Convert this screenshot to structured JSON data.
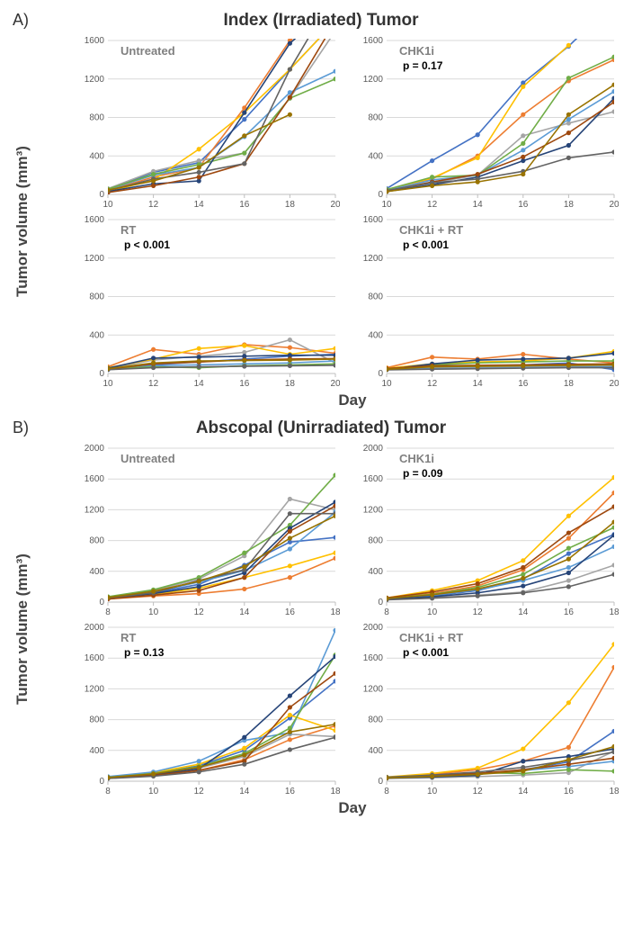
{
  "palette": [
    "#4472c4",
    "#ed7d31",
    "#a5a5a5",
    "#ffc000",
    "#5b9bd5",
    "#70ad47",
    "#264478",
    "#9e480e",
    "#636363",
    "#997300"
  ],
  "grid_color": "#d9d9d9",
  "axis_color": "#bfbfbf",
  "panelA": {
    "label": "A)",
    "title": "Index (Irradiated) Tumor",
    "xlabel": "Day",
    "ylabel": "Tumor volume (mm³)",
    "x_domain": [
      10,
      20
    ],
    "x_ticks": [
      10,
      12,
      14,
      16,
      18,
      20
    ],
    "y_domain": [
      0,
      1600
    ],
    "y_ticks": [
      0,
      400,
      800,
      1200,
      1600
    ],
    "charts": [
      {
        "condition": "Untreated",
        "p": null,
        "series": [
          [
            50,
            230,
            330,
            780,
            1300,
            1800
          ],
          [
            40,
            180,
            280,
            900,
            1600,
            2000
          ],
          [
            60,
            240,
            350,
            430,
            1000,
            1700
          ],
          [
            30,
            150,
            470,
            850,
            1300,
            1800
          ],
          [
            50,
            200,
            280,
            600,
            1060,
            1280
          ],
          [
            55,
            210,
            310,
            430,
            1000,
            1200
          ],
          [
            30,
            110,
            140,
            850,
            1570,
            2000
          ],
          [
            20,
            90,
            180,
            320,
            1010,
            1800
          ],
          [
            40,
            160,
            230,
            320,
            1300,
            2100
          ],
          [
            45,
            140,
            280,
            610,
            830
          ]
        ]
      },
      {
        "condition": "CHK1i",
        "p": "p = 0.17",
        "series": [
          [
            60,
            350,
            620,
            1160,
            1540,
            2000
          ],
          [
            40,
            160,
            400,
            830,
            1180,
            1400
          ],
          [
            30,
            120,
            200,
            610,
            740,
            860
          ],
          [
            50,
            170,
            380,
            1120,
            1550
          ],
          [
            40,
            150,
            200,
            460,
            780,
            1070
          ],
          [
            50,
            180,
            200,
            530,
            1210,
            1430
          ],
          [
            30,
            100,
            180,
            350,
            510,
            1000
          ],
          [
            35,
            130,
            210,
            390,
            640,
            960
          ],
          [
            40,
            120,
            160,
            240,
            380,
            440
          ],
          [
            30,
            90,
            130,
            210,
            830,
            1140
          ]
        ]
      },
      {
        "condition": "RT",
        "p": "p < 0.001",
        "series": [
          [
            60,
            90,
            120,
            150,
            180,
            200
          ],
          [
            70,
            250,
            200,
            300,
            270,
            210
          ],
          [
            50,
            140,
            180,
            220,
            350,
            110
          ],
          [
            60,
            150,
            260,
            290,
            200,
            260
          ],
          [
            40,
            80,
            90,
            100,
            110,
            130
          ],
          [
            50,
            70,
            60,
            80,
            90,
            100
          ],
          [
            55,
            160,
            170,
            180,
            190,
            190
          ],
          [
            45,
            100,
            120,
            140,
            150,
            155
          ],
          [
            40,
            60,
            70,
            75,
            80,
            85
          ],
          [
            50,
            110,
            130,
            135,
            140,
            150
          ]
        ]
      },
      {
        "condition": "CHK1i + RT",
        "p": "p < 0.001",
        "series": [
          [
            50,
            70,
            80,
            90,
            110,
            40
          ],
          [
            60,
            170,
            150,
            200,
            150,
            110
          ],
          [
            45,
            60,
            65,
            70,
            75,
            80
          ],
          [
            55,
            100,
            120,
            130,
            160,
            230
          ],
          [
            40,
            50,
            55,
            60,
            65,
            70
          ],
          [
            48,
            90,
            110,
            120,
            130,
            130
          ],
          [
            42,
            100,
            140,
            150,
            160,
            210
          ],
          [
            52,
            80,
            85,
            90,
            95,
            100
          ],
          [
            38,
            45,
            50,
            55,
            60,
            60
          ],
          [
            44,
            70,
            75,
            80,
            85,
            90
          ]
        ]
      }
    ]
  },
  "panelB": {
    "label": "B)",
    "title": "Abscopal (Unirradiated) Tumor",
    "xlabel": "Day",
    "ylabel": "Tumor volume (mm³)",
    "x_domain": [
      8,
      18
    ],
    "x_ticks": [
      8,
      10,
      12,
      14,
      16,
      18
    ],
    "y_domain": [
      0,
      2000
    ],
    "y_ticks": [
      0,
      400,
      800,
      1200,
      1600,
      2000
    ],
    "charts": [
      {
        "condition": "Untreated",
        "p": null,
        "series": [
          [
            50,
            120,
            230,
            480,
            780,
            840
          ],
          [
            40,
            80,
            110,
            170,
            320,
            570
          ],
          [
            60,
            150,
            300,
            600,
            1340,
            1200
          ],
          [
            55,
            100,
            180,
            320,
            470,
            640
          ],
          [
            45,
            130,
            260,
            410,
            690,
            1170
          ],
          [
            70,
            160,
            320,
            640,
            1000,
            1650
          ],
          [
            50,
            110,
            200,
            380,
            960,
            1300
          ],
          [
            40,
            90,
            150,
            320,
            920,
            1250
          ],
          [
            55,
            120,
            280,
            420,
            1150,
            1150
          ],
          [
            60,
            140,
            270,
            460,
            830,
            1120
          ]
        ]
      },
      {
        "condition": "CHK1i",
        "p": "p = 0.09",
        "series": [
          [
            40,
            80,
            150,
            300,
            630,
            880
          ],
          [
            50,
            110,
            210,
            420,
            830,
            1420
          ],
          [
            35,
            60,
            90,
            130,
            280,
            480
          ],
          [
            55,
            150,
            280,
            540,
            1120,
            1620
          ],
          [
            45,
            90,
            160,
            280,
            450,
            720
          ],
          [
            50,
            100,
            190,
            360,
            700,
            970
          ],
          [
            40,
            70,
            120,
            210,
            380,
            870
          ],
          [
            55,
            130,
            240,
            450,
            900,
            1240
          ],
          [
            30,
            50,
            80,
            120,
            200,
            360
          ],
          [
            48,
            95,
            170,
            310,
            560,
            1040
          ]
        ]
      },
      {
        "condition": "RT",
        "p": "p = 0.13",
        "series": [
          [
            50,
            100,
            200,
            400,
            820,
            1300
          ],
          [
            40,
            80,
            140,
            280,
            540,
            720
          ],
          [
            45,
            90,
            170,
            320,
            610,
            580
          ],
          [
            55,
            110,
            220,
            430,
            860,
            660
          ],
          [
            60,
            120,
            260,
            530,
            630,
            1960
          ],
          [
            50,
            100,
            190,
            360,
            690,
            1640
          ],
          [
            45,
            85,
            160,
            570,
            1110,
            1620
          ],
          [
            40,
            75,
            140,
            260,
            960,
            1400
          ],
          [
            35,
            65,
            120,
            220,
            410,
            570
          ],
          [
            48,
            95,
            180,
            340,
            640,
            740
          ]
        ]
      },
      {
        "condition": "CHK1i + RT",
        "p": "p < 0.001",
        "series": [
          [
            40,
            60,
            90,
            150,
            250,
            650
          ],
          [
            50,
            90,
            150,
            260,
            440,
            1480
          ],
          [
            35,
            45,
            60,
            80,
            110,
            390
          ],
          [
            55,
            100,
            170,
            420,
            1020,
            1780
          ],
          [
            45,
            65,
            95,
            140,
            190,
            260
          ],
          [
            50,
            75,
            110,
            100,
            150,
            130
          ],
          [
            40,
            55,
            75,
            260,
            320,
            420
          ],
          [
            48,
            70,
            100,
            150,
            220,
            300
          ],
          [
            52,
            80,
            120,
            180,
            270,
            380
          ],
          [
            42,
            62,
            88,
            130,
            280,
            450
          ]
        ]
      }
    ]
  }
}
